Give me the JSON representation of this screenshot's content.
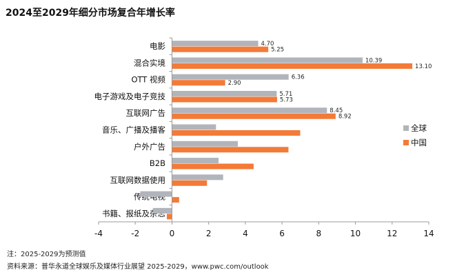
{
  "chart_data": {
    "type": "bar",
    "orientation": "horizontal",
    "title": "2024至2029年细分市场复合年增长率",
    "categories": [
      "电影",
      "混合实境",
      "OTT 视频",
      "电子游戏及电子竞技",
      "互联网广告",
      "音乐、广播及播客",
      "户外广告",
      "B2B",
      "互联网数据使用",
      "传统电视",
      "书籍、报纸及杂志"
    ],
    "series": [
      {
        "name": "全球",
        "color": "#b1b5bb",
        "values": [
          4.7,
          10.39,
          6.36,
          5.71,
          8.45,
          2.4,
          3.59,
          2.54,
          2.79,
          -1.73,
          -1.04
        ],
        "labels": [
          "4.70",
          "10.39",
          "6.36",
          "5.71",
          "8.45",
          "",
          "",
          "",
          "",
          "",
          ""
        ]
      },
      {
        "name": "中国",
        "color": "#f47a38",
        "values": [
          5.25,
          13.1,
          2.9,
          5.73,
          8.92,
          6.99,
          6.35,
          4.45,
          1.91,
          0.39,
          -0.28
        ],
        "labels": [
          "5.25",
          "13.10",
          "2.90",
          "5.73",
          "8.92",
          "",
          "",
          "",
          "",
          "",
          ""
        ]
      }
    ],
    "xlim": [
      -4,
      14
    ],
    "xticks": [
      -4,
      -2,
      0,
      2,
      4,
      6,
      8,
      10,
      12,
      14
    ],
    "grid": false,
    "legend": "right"
  },
  "notes": {
    "note": "注：2025-2029为预测值",
    "source": "资料来源：普华永道全球娱乐及媒体行业展望 2025-2029，www.pwc.com/outlook"
  }
}
